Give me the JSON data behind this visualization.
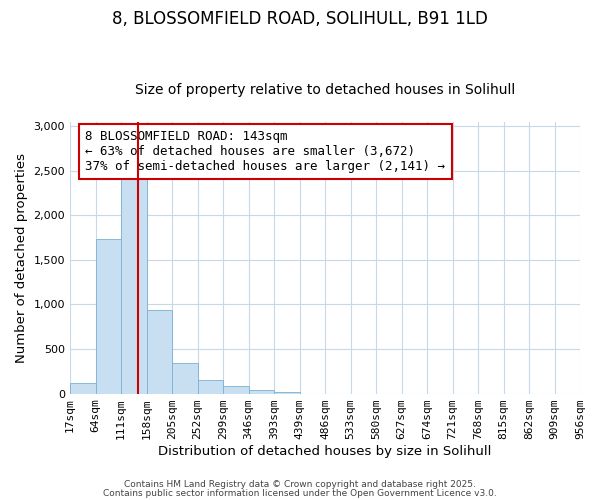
{
  "title": "8, BLOSSOMFIELD ROAD, SOLIHULL, B91 1LD",
  "subtitle": "Size of property relative to detached houses in Solihull",
  "xlabel": "Distribution of detached houses by size in Solihull",
  "ylabel": "Number of detached properties",
  "bar_values": [
    120,
    1730,
    2420,
    940,
    340,
    155,
    80,
    40,
    20,
    0,
    0,
    0,
    0,
    0,
    0,
    0,
    0,
    0,
    0,
    0
  ],
  "bin_labels": [
    "17sqm",
    "64sqm",
    "111sqm",
    "158sqm",
    "205sqm",
    "252sqm",
    "299sqm",
    "346sqm",
    "393sqm",
    "439sqm",
    "486sqm",
    "533sqm",
    "580sqm",
    "627sqm",
    "674sqm",
    "721sqm",
    "768sqm",
    "815sqm",
    "862sqm",
    "909sqm",
    "956sqm"
  ],
  "bar_color": "#c8dff2",
  "bar_edge_color": "#7ab0d4",
  "vline_color": "#cc0000",
  "annotation_text": "8 BLOSSOMFIELD ROAD: 143sqm\n← 63% of detached houses are smaller (3,672)\n37% of semi-detached houses are larger (2,141) →",
  "annotation_box_color": "#ffffff",
  "annotation_box_edge_color": "#cc0000",
  "ylim": [
    0,
    3050
  ],
  "yticks": [
    0,
    500,
    1000,
    1500,
    2000,
    2500,
    3000
  ],
  "footer1": "Contains HM Land Registry data © Crown copyright and database right 2025.",
  "footer2": "Contains public sector information licensed under the Open Government Licence v3.0.",
  "background_color": "#ffffff",
  "grid_color": "#c8d8e8",
  "title_fontsize": 12,
  "subtitle_fontsize": 10,
  "axis_label_fontsize": 9.5,
  "tick_fontsize": 8,
  "annotation_fontsize": 9,
  "footer_fontsize": 6.5
}
